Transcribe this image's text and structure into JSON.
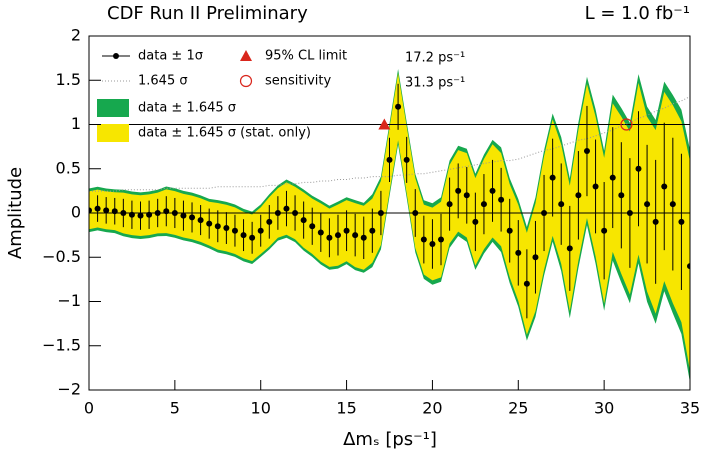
{
  "chart_data": {
    "type": "amplitude-scan",
    "title": "CDF Run II Preliminary",
    "luminosity": "L = 1.0 fb⁻¹",
    "xlabel": "Δmₛ [ps⁻¹]",
    "ylabel": "Amplitude",
    "xlim": [
      0,
      35
    ],
    "xticks": [
      0,
      5,
      10,
      15,
      20,
      25,
      30,
      35
    ],
    "ylim": [
      -2,
      2
    ],
    "yticks": [
      {
        "value": -2,
        "label": "−2"
      },
      {
        "value": -1.5,
        "label": "−1.5"
      },
      {
        "value": -1,
        "label": "−1"
      },
      {
        "value": -0.5,
        "label": "−0.5"
      },
      0,
      0.5,
      1,
      1.5,
      2
    ],
    "hlines": [
      0,
      1
    ],
    "band_factor": 1.645,
    "legend": {
      "data": "data ± 1σ",
      "sensitivity_line": "1.645 σ",
      "band_total": "data ± 1.645 σ",
      "band_stat": "data ± 1.645 σ (stat. only)"
    },
    "colors": {
      "band_total": "#16a84e",
      "band_stat": "#f7e600",
      "points": "#000000",
      "markers": "#d9261c"
    },
    "limit": {
      "name": "95% CL limit",
      "x": 17.2,
      "y": 1,
      "label": "17.2 ps⁻¹"
    },
    "sensitivity": {
      "name": "sensitivity",
      "x": 31.3,
      "y": 1,
      "label": "31.3 ps⁻¹"
    },
    "x": [
      0,
      0.5,
      1,
      1.5,
      2,
      2.5,
      3,
      3.5,
      4,
      4.5,
      5,
      5.5,
      6,
      6.5,
      7,
      7.5,
      8,
      8.5,
      9,
      9.5,
      10,
      10.5,
      11,
      11.5,
      12,
      12.5,
      13,
      13.5,
      14,
      14.5,
      15,
      15.5,
      16,
      16.5,
      17,
      17.5,
      18,
      18.5,
      19,
      19.5,
      20,
      20.5,
      21,
      21.5,
      22,
      22.5,
      23,
      23.5,
      24,
      24.5,
      25,
      25.5,
      26,
      26.5,
      27,
      27.5,
      28,
      28.5,
      29,
      29.5,
      30,
      30.5,
      31,
      31.5,
      32,
      32.5,
      33,
      33.5,
      34,
      34.5,
      35
    ],
    "values": [
      0.03,
      0.05,
      0.03,
      0.02,
      0.0,
      -0.02,
      -0.03,
      -0.02,
      0.0,
      0.02,
      0.0,
      -0.03,
      -0.05,
      -0.08,
      -0.12,
      -0.15,
      -0.17,
      -0.2,
      -0.25,
      -0.28,
      -0.2,
      -0.1,
      0.0,
      0.05,
      0.0,
      -0.08,
      -0.15,
      -0.22,
      -0.28,
      -0.25,
      -0.2,
      -0.25,
      -0.28,
      -0.2,
      0.0,
      0.6,
      1.2,
      0.6,
      0.0,
      -0.3,
      -0.35,
      -0.3,
      0.1,
      0.25,
      0.2,
      -0.1,
      0.1,
      0.25,
      0.15,
      -0.2,
      -0.45,
      -0.8,
      -0.5,
      0.0,
      0.4,
      0.1,
      -0.4,
      0.2,
      0.7,
      0.3,
      -0.2,
      0.4,
      0.2,
      0.0,
      0.5,
      0.1,
      -0.1,
      0.3,
      0.1,
      -0.1,
      -0.6
    ],
    "sigma": [
      0.15,
      0.15,
      0.15,
      0.15,
      0.16,
      0.16,
      0.16,
      0.16,
      0.16,
      0.17,
      0.17,
      0.17,
      0.17,
      0.17,
      0.17,
      0.18,
      0.18,
      0.18,
      0.18,
      0.18,
      0.18,
      0.19,
      0.19,
      0.2,
      0.2,
      0.21,
      0.21,
      0.22,
      0.22,
      0.23,
      0.23,
      0.24,
      0.24,
      0.25,
      0.25,
      0.25,
      0.26,
      0.26,
      0.27,
      0.27,
      0.28,
      0.29,
      0.3,
      0.31,
      0.32,
      0.33,
      0.34,
      0.35,
      0.36,
      0.36,
      0.37,
      0.39,
      0.41,
      0.43,
      0.44,
      0.46,
      0.48,
      0.5,
      0.51,
      0.53,
      0.55,
      0.57,
      0.6,
      0.62,
      0.65,
      0.67,
      0.7,
      0.72,
      0.75,
      0.77,
      0.8
    ],
    "sigma_stat": [
      0.13,
      0.13,
      0.13,
      0.13,
      0.14,
      0.14,
      0.14,
      0.14,
      0.14,
      0.15,
      0.15,
      0.15,
      0.15,
      0.15,
      0.15,
      0.16,
      0.16,
      0.16,
      0.16,
      0.16,
      0.16,
      0.17,
      0.17,
      0.18,
      0.18,
      0.19,
      0.19,
      0.2,
      0.2,
      0.21,
      0.21,
      0.22,
      0.22,
      0.22,
      0.22,
      0.22,
      0.23,
      0.23,
      0.24,
      0.24,
      0.25,
      0.26,
      0.27,
      0.28,
      0.29,
      0.3,
      0.31,
      0.32,
      0.32,
      0.32,
      0.33,
      0.35,
      0.37,
      0.39,
      0.4,
      0.41,
      0.43,
      0.45,
      0.46,
      0.48,
      0.5,
      0.51,
      0.54,
      0.56,
      0.59,
      0.6,
      0.63,
      0.65,
      0.68,
      0.69,
      0.72
    ]
  }
}
